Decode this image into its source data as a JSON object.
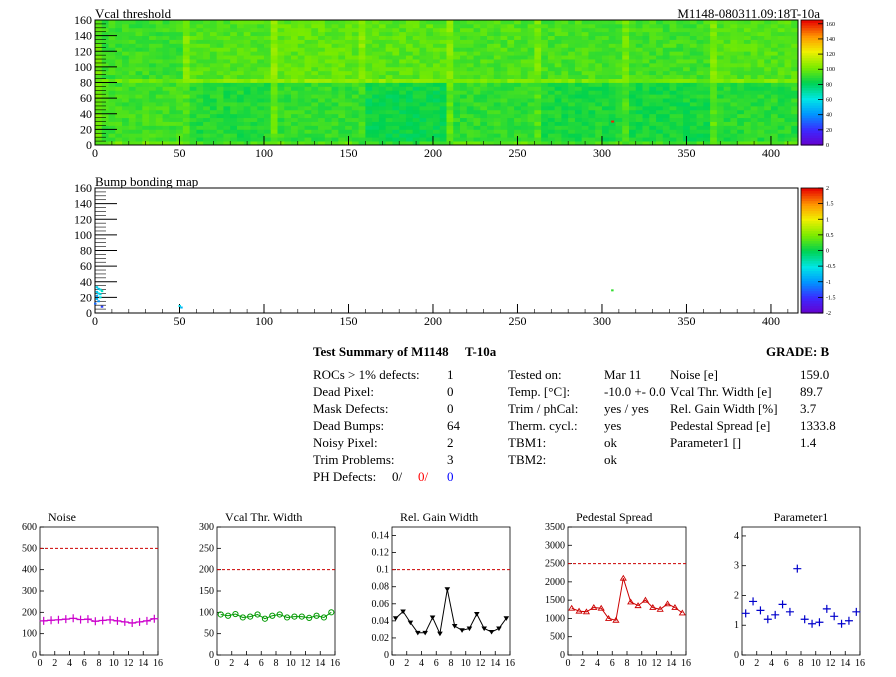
{
  "header": {
    "title1": "Vcal threshold",
    "module_id": "M1148-080311.09:18T-10a",
    "title2": "Bump bonding map"
  },
  "colors": {
    "noise": "#cc00cc",
    "vcal": "#009900",
    "gain": "#000000",
    "pedestal": "#cc0000",
    "param1": "#0000cc",
    "limit": "#cc0000",
    "defect_red": "#ff0000",
    "defect_blue": "#0000ff"
  },
  "chart_data": [
    {
      "type": "heatmap",
      "title": "Vcal threshold",
      "xlim": [
        0,
        416
      ],
      "ylim": [
        0,
        160
      ],
      "x_ticks": [
        0,
        50,
        100,
        150,
        200,
        250,
        300,
        350,
        400
      ],
      "y_ticks": [
        0,
        20,
        40,
        60,
        80,
        100,
        120,
        140,
        160
      ],
      "z_range": [
        0,
        165
      ],
      "z_ticks": [
        0,
        20,
        40,
        60,
        80,
        100,
        120,
        140,
        160
      ],
      "roc_columns": 8,
      "roc_rows": 2,
      "roc_mean_vcal": [
        [
          93,
          88,
          91,
          84,
          90,
          87,
          86,
          89
        ],
        [
          92,
          96,
          98,
          97,
          95,
          94,
          93,
          96
        ]
      ],
      "hot_pixels": [
        {
          "x": 306,
          "y": 30,
          "value": 160
        }
      ]
    },
    {
      "type": "heatmap",
      "title": "Bump bonding map",
      "xlim": [
        0,
        416
      ],
      "ylim": [
        0,
        160
      ],
      "x_ticks": [
        0,
        50,
        100,
        150,
        200,
        250,
        300,
        350,
        400
      ],
      "y_ticks": [
        0,
        20,
        40,
        60,
        80,
        100,
        120,
        140,
        160
      ],
      "z_range": [
        -2,
        2
      ],
      "z_ticks": [
        -2,
        -1.5,
        -1,
        -0.5,
        0,
        0.5,
        1,
        1.5,
        2
      ],
      "points": [
        {
          "x": 1,
          "y": 33,
          "v": -0.6
        },
        {
          "x": 2,
          "y": 31,
          "v": -0.8
        },
        {
          "x": 3,
          "y": 30,
          "v": -0.5
        },
        {
          "x": 1,
          "y": 27,
          "v": -0.7
        },
        {
          "x": 2,
          "y": 25,
          "v": -0.6
        },
        {
          "x": 1,
          "y": 22,
          "v": -0.9
        },
        {
          "x": 3,
          "y": 20,
          "v": -0.5
        },
        {
          "x": 1,
          "y": 18,
          "v": -0.8
        },
        {
          "x": 2,
          "y": 15,
          "v": -1.0
        },
        {
          "x": 4,
          "y": 28,
          "v": -0.4
        },
        {
          "x": 3,
          "y": 24,
          "v": -0.6
        },
        {
          "x": 0,
          "y": 12,
          "v": -1.2
        },
        {
          "x": 4,
          "y": 8,
          "v": -1.4
        },
        {
          "x": 50,
          "y": 9,
          "v": -0.6
        },
        {
          "x": 51,
          "y": 7,
          "v": -0.8
        },
        {
          "x": 306,
          "y": 29,
          "v": 0.2
        }
      ]
    },
    {
      "type": "line",
      "title": "Noise",
      "x": [
        0,
        1,
        2,
        3,
        4,
        5,
        6,
        7,
        8,
        9,
        10,
        11,
        12,
        13,
        14,
        15
      ],
      "values": [
        160,
        163,
        165,
        168,
        172,
        166,
        168,
        158,
        162,
        165,
        160,
        155,
        150,
        155,
        160,
        170
      ],
      "ylim": [
        0,
        600
      ],
      "xlim": [
        0,
        16
      ],
      "limit": 500,
      "y_ticks": [
        0,
        100,
        200,
        300,
        400,
        500,
        600
      ],
      "x_ticks": [
        0,
        2,
        4,
        6,
        8,
        10,
        12,
        14,
        16
      ],
      "marker": "cross"
    },
    {
      "type": "line",
      "title": "Vcal Thr. Width",
      "x": [
        0,
        1,
        2,
        3,
        4,
        5,
        6,
        7,
        8,
        9,
        10,
        11,
        12,
        13,
        14,
        15
      ],
      "values": [
        95,
        92,
        96,
        88,
        90,
        95,
        85,
        92,
        95,
        88,
        90,
        90,
        87,
        92,
        88,
        100
      ],
      "ylim": [
        0,
        300
      ],
      "xlim": [
        0,
        16
      ],
      "limit": 200,
      "y_ticks": [
        0,
        50,
        100,
        150,
        200,
        250,
        300
      ],
      "x_ticks": [
        0,
        2,
        4,
        6,
        8,
        10,
        12,
        14,
        16
      ],
      "marker": "circle"
    },
    {
      "type": "line",
      "title": "Rel. Gain Width",
      "x": [
        0,
        1,
        2,
        3,
        4,
        5,
        6,
        7,
        8,
        9,
        10,
        11,
        12,
        13,
        14,
        15
      ],
      "values": [
        0.043,
        0.051,
        0.038,
        0.026,
        0.026,
        0.044,
        0.025,
        0.077,
        0.034,
        0.029,
        0.031,
        0.048,
        0.031,
        0.027,
        0.031,
        0.043
      ],
      "ylim": [
        0,
        0.15
      ],
      "xlim": [
        0,
        16
      ],
      "limit": 0.1,
      "y_ticks": [
        0,
        0.02,
        0.04,
        0.06,
        0.08,
        0.1,
        0.12,
        0.14
      ],
      "x_ticks": [
        0,
        2,
        4,
        6,
        8,
        10,
        12,
        14,
        16
      ],
      "marker": "triangle"
    },
    {
      "type": "line",
      "title": "Pedestal Spread",
      "x": [
        0,
        1,
        2,
        3,
        4,
        5,
        6,
        7,
        8,
        9,
        10,
        11,
        12,
        13,
        14,
        15
      ],
      "values": [
        1280,
        1200,
        1180,
        1300,
        1280,
        1000,
        950,
        2100,
        1450,
        1350,
        1500,
        1300,
        1250,
        1400,
        1300,
        1150
      ],
      "ylim": [
        0,
        3500
      ],
      "xlim": [
        0,
        16
      ],
      "limit": 2500,
      "y_ticks": [
        0,
        500,
        1000,
        1500,
        2000,
        2500,
        3000,
        3500
      ],
      "x_ticks": [
        0,
        2,
        4,
        6,
        8,
        10,
        12,
        14,
        16
      ],
      "marker": "triangle-open"
    },
    {
      "type": "scatter",
      "title": "Parameter1",
      "x": [
        0,
        1,
        2,
        3,
        4,
        5,
        6,
        7,
        8,
        9,
        10,
        11,
        12,
        13,
        14,
        15
      ],
      "values": [
        1.4,
        1.8,
        1.5,
        1.2,
        1.35,
        1.7,
        1.45,
        2.9,
        1.2,
        1.05,
        1.1,
        1.55,
        1.3,
        1.05,
        1.15,
        1.45
      ],
      "ylim": [
        0,
        4.3
      ],
      "xlim": [
        0,
        16
      ],
      "y_ticks": [
        0,
        1,
        2,
        3,
        4
      ],
      "x_ticks": [
        0,
        2,
        4,
        6,
        8,
        10,
        12,
        14,
        16
      ],
      "marker": "cross"
    }
  ],
  "summary": {
    "title": "Test Summary of M1148",
    "temp_tag": "T-10a",
    "grade": "GRADE:  B",
    "col1": [
      {
        "label": "ROCs > 1% defects:",
        "value": "1"
      },
      {
        "label": "Dead Pixel:",
        "value": "0"
      },
      {
        "label": "Mask Defects:",
        "value": "0"
      },
      {
        "label": "Dead Bumps:",
        "value": "64"
      },
      {
        "label": "Noisy Pixel:",
        "value": "2"
      },
      {
        "label": "Trim Problems:",
        "value": "3"
      }
    ],
    "ph_defects": {
      "label": "PH Defects:",
      "v1": "0/",
      "v2": "0/",
      "v3": "0"
    },
    "col2": [
      {
        "label": "Tested on:",
        "value": "Mar 11"
      },
      {
        "label": "Temp. [°C]:",
        "value": "-10.0 +- 0.0"
      },
      {
        "label": "Trim / phCal:",
        "value": "yes / yes"
      },
      {
        "label": "Therm. cycl.:",
        "value": "yes"
      },
      {
        "label": "TBM1:",
        "value": "ok"
      },
      {
        "label": "TBM2:",
        "value": "ok"
      }
    ],
    "col3": [
      {
        "label": "Noise [e]",
        "value": "159.0"
      },
      {
        "label": "Vcal Thr. Width [e]",
        "value": "89.7"
      },
      {
        "label": "Rel. Gain Width [%]",
        "value": "3.7"
      },
      {
        "label": "Pedestal Spread [e]",
        "value": "1333.8"
      },
      {
        "label": "Parameter1 []",
        "value": "1.4"
      }
    ]
  }
}
